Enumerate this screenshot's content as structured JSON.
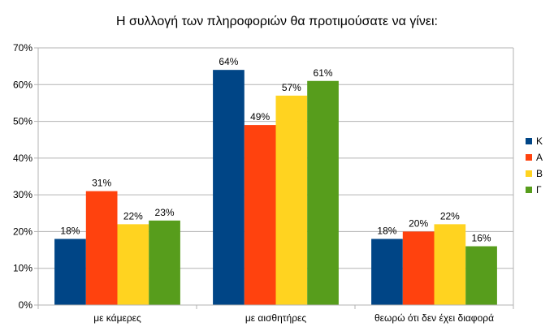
{
  "chart_data": {
    "type": "bar",
    "title": "Η συλλογή των πληροφοριών θα προτιμούσατε να γίνει:",
    "xlabel": "",
    "ylabel": "",
    "categories": [
      "με κάμερες",
      "με αισθητήρες",
      "θεωρώ ότι δεν έχει διαφορά"
    ],
    "series": [
      {
        "name": "Κ",
        "color": "#004586",
        "values": [
          18,
          64,
          18
        ],
        "labels": [
          "18%",
          "64%",
          "18%"
        ]
      },
      {
        "name": "Α",
        "color": "#ff420e",
        "values": [
          31,
          49,
          20
        ],
        "labels": [
          "31%",
          "49%",
          "20%"
        ]
      },
      {
        "name": "Β",
        "color": "#ffd320",
        "values": [
          22,
          57,
          22
        ],
        "labels": [
          "22%",
          "57%",
          "22%"
        ]
      },
      {
        "name": "Γ",
        "color": "#579d1c",
        "values": [
          23,
          61,
          16
        ],
        "labels": [
          "23%",
          "61%",
          "16%"
        ]
      }
    ],
    "ylim": [
      0,
      70
    ],
    "yticks": [
      "0%",
      "10%",
      "20%",
      "30%",
      "40%",
      "50%",
      "60%",
      "70%"
    ],
    "grid": true,
    "legend": "right"
  }
}
